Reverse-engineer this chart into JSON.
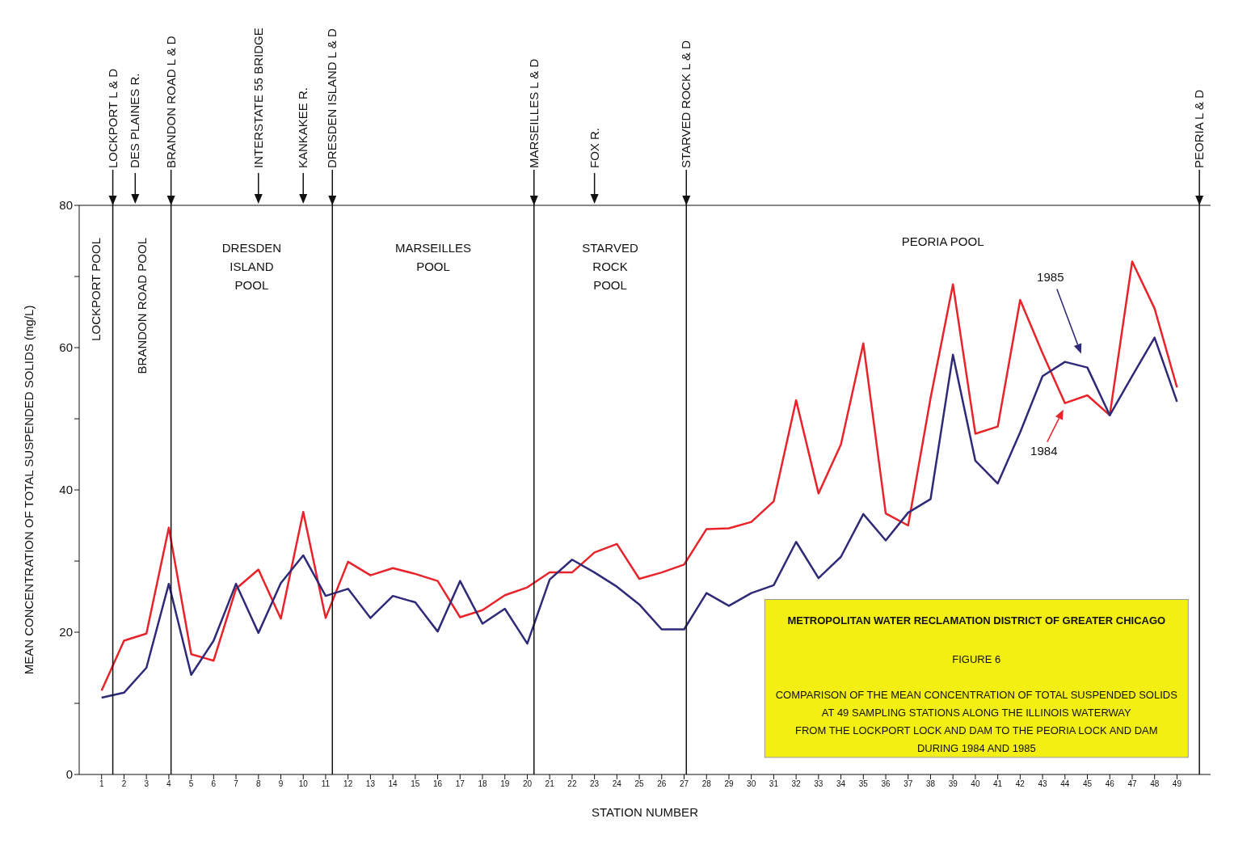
{
  "chart_data": {
    "type": "line",
    "title": "METROPOLITAN WATER RECLAMATION DISTRICT OF GREATER CHICAGO",
    "subtitle": "FIGURE 6\n\nCOMPARISON OF THE MEAN CONCENTRATION OF TOTAL SUSPENDED SOLIDS\nAT 49 SAMPLING STATIONS ALONG THE ILLINOIS WATERWAY\nFROM THE LOCKPORT LOCK AND DAM TO THE PEORIA LOCK AND DAM\nDURING 1984 AND 1985",
    "xlabel": "STATION NUMBER",
    "ylabel": "MEAN CONCENTRATION OF TOTAL SUSPENDED SOLIDS (mg/L)",
    "x": [
      1,
      2,
      3,
      4,
      5,
      6,
      7,
      8,
      9,
      10,
      11,
      12,
      13,
      14,
      15,
      16,
      17,
      18,
      19,
      20,
      21,
      22,
      23,
      24,
      25,
      26,
      27,
      28,
      29,
      30,
      31,
      32,
      33,
      34,
      35,
      36,
      37,
      38,
      39,
      40,
      41,
      42,
      43,
      44,
      45,
      46,
      47,
      48,
      49
    ],
    "series": [
      {
        "name": "1984",
        "color": "#e8232a",
        "values": [
          11.8,
          18.8,
          19.8,
          34.7,
          16.9,
          16.0,
          26.1,
          28.8,
          21.9,
          36.9,
          22.0,
          29.9,
          28.0,
          29.0,
          28.2,
          27.2,
          22.1,
          23.1,
          25.2,
          26.3,
          28.4,
          28.4,
          31.2,
          32.4,
          27.5,
          28.4,
          29.5,
          34.5,
          34.6,
          35.5,
          38.4,
          52.6,
          39.5,
          46.4,
          60.6,
          36.7,
          35.0,
          52.9,
          68.9,
          47.9,
          48.9,
          66.7,
          59.2,
          52.2,
          53.3,
          50.5,
          72.1,
          65.5,
          54.4
        ]
      },
      {
        "name": "1985",
        "color": "#2f2a78",
        "values": [
          10.8,
          11.5,
          15.0,
          26.8,
          14.0,
          18.8,
          26.8,
          19.9,
          26.9,
          30.8,
          25.1,
          26.1,
          22.0,
          25.1,
          24.2,
          20.1,
          27.2,
          21.2,
          23.3,
          18.4,
          27.4,
          30.2,
          28.4,
          26.4,
          23.9,
          20.4,
          20.4,
          25.5,
          23.7,
          25.5,
          26.6,
          32.7,
          27.6,
          30.6,
          36.6,
          32.9,
          36.8,
          38.7,
          59.0,
          44.1,
          40.9,
          48.1,
          56.0,
          58.0,
          57.2,
          50.5,
          56.0,
          61.4,
          52.4
        ]
      }
    ],
    "xlim": [
      0,
      50.5
    ],
    "xticks": [
      1,
      2,
      3,
      4,
      5,
      6,
      7,
      8,
      9,
      10,
      11,
      12,
      13,
      14,
      15,
      16,
      17,
      18,
      19,
      20,
      21,
      22,
      23,
      24,
      25,
      26,
      27,
      28,
      29,
      30,
      31,
      32,
      33,
      34,
      35,
      36,
      37,
      38,
      39,
      40,
      41,
      42,
      43,
      44,
      45,
      46,
      47,
      48,
      49
    ],
    "ylim": [
      0,
      80
    ],
    "yticks": [
      0,
      {
        "value": 10,
        "label": null
      },
      20,
      {
        "value": 30,
        "label": null
      },
      40,
      {
        "value": 50,
        "label": null
      },
      60,
      {
        "value": 70,
        "label": null
      },
      80
    ],
    "ref_lines": [
      {
        "axis": "x",
        "value": 1.5,
        "label": "LOCKPORT L & D"
      },
      {
        "axis": "x",
        "value": 4.1,
        "label": "BRANDON ROAD L & D"
      },
      {
        "axis": "x",
        "value": 11.3,
        "label": "DRESDEN ISLAND L & D"
      },
      {
        "axis": "x",
        "value": 20.3,
        "label": "MARSEILLES L & D"
      },
      {
        "axis": "x",
        "value": 27.1,
        "label": "STARVED ROCK L & D"
      },
      {
        "axis": "x",
        "value": 50,
        "label": "PEORIA L & D"
      }
    ],
    "annotations": [
      "LOCKPORT POOL",
      "BRANDON ROAD POOL",
      "DRESDEN ISLAND POOL",
      "MARSEILLES POOL",
      "STARVED ROCK POOL",
      "PEORIA POOL",
      "DES PLAINES R.",
      "INTERSTATE 55 BRIDGE",
      "KANKAKEE R.",
      "FOX R."
    ]
  }
}
